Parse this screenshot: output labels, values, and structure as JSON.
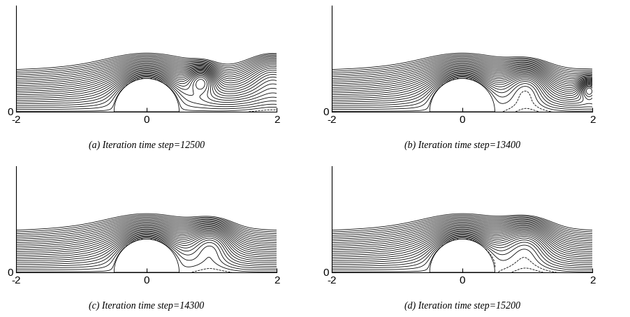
{
  "chart_data": [
    {
      "type": "contour",
      "title": "(a) Iteration time step=12500",
      "xlim": [
        -2,
        2
      ],
      "xticks": [
        -2,
        0,
        2
      ],
      "ylim": [
        0,
        1.6
      ],
      "yticks": [
        0
      ],
      "obstacle": {
        "x": 0,
        "radius": 0.5
      },
      "vortices": [
        {
          "x": 0.85,
          "y": 0.5,
          "radius": 0.22
        },
        {
          "x": 1.95,
          "y": 0.65,
          "radius": 0.45
        }
      ]
    },
    {
      "type": "contour",
      "title": "(b) Iteration time step=13400",
      "xlim": [
        -2,
        2
      ],
      "xticks": [
        -2,
        0,
        2
      ],
      "ylim": [
        0,
        1.6
      ],
      "yticks": [
        0
      ],
      "obstacle": {
        "x": 0,
        "radius": 0.5
      },
      "vortices": [
        {
          "x": 1.0,
          "y": 0.45,
          "radius": 0.35
        },
        {
          "x": 1.95,
          "y": 0.35,
          "radius": 0.15
        }
      ]
    },
    {
      "type": "contour",
      "title": "(c) Iteration time step=14300",
      "xlim": [
        -2,
        2
      ],
      "xticks": [
        -2,
        0,
        2
      ],
      "ylim": [
        0,
        1.6
      ],
      "yticks": [
        0
      ],
      "obstacle": {
        "x": 0,
        "radius": 0.5
      },
      "vortices": [
        {
          "x": 1.0,
          "y": 0.5,
          "radius": 0.35
        }
      ]
    },
    {
      "type": "contour",
      "title": "(d) Iteration time step=15200",
      "xlim": [
        -2,
        2
      ],
      "xticks": [
        -2,
        0,
        2
      ],
      "ylim": [
        0,
        1.6
      ],
      "yticks": [
        0
      ],
      "obstacle": {
        "x": 0,
        "radius": 0.5
      },
      "vortices": [
        {
          "x": 1.0,
          "y": 0.5,
          "radius": 0.4
        }
      ]
    }
  ]
}
